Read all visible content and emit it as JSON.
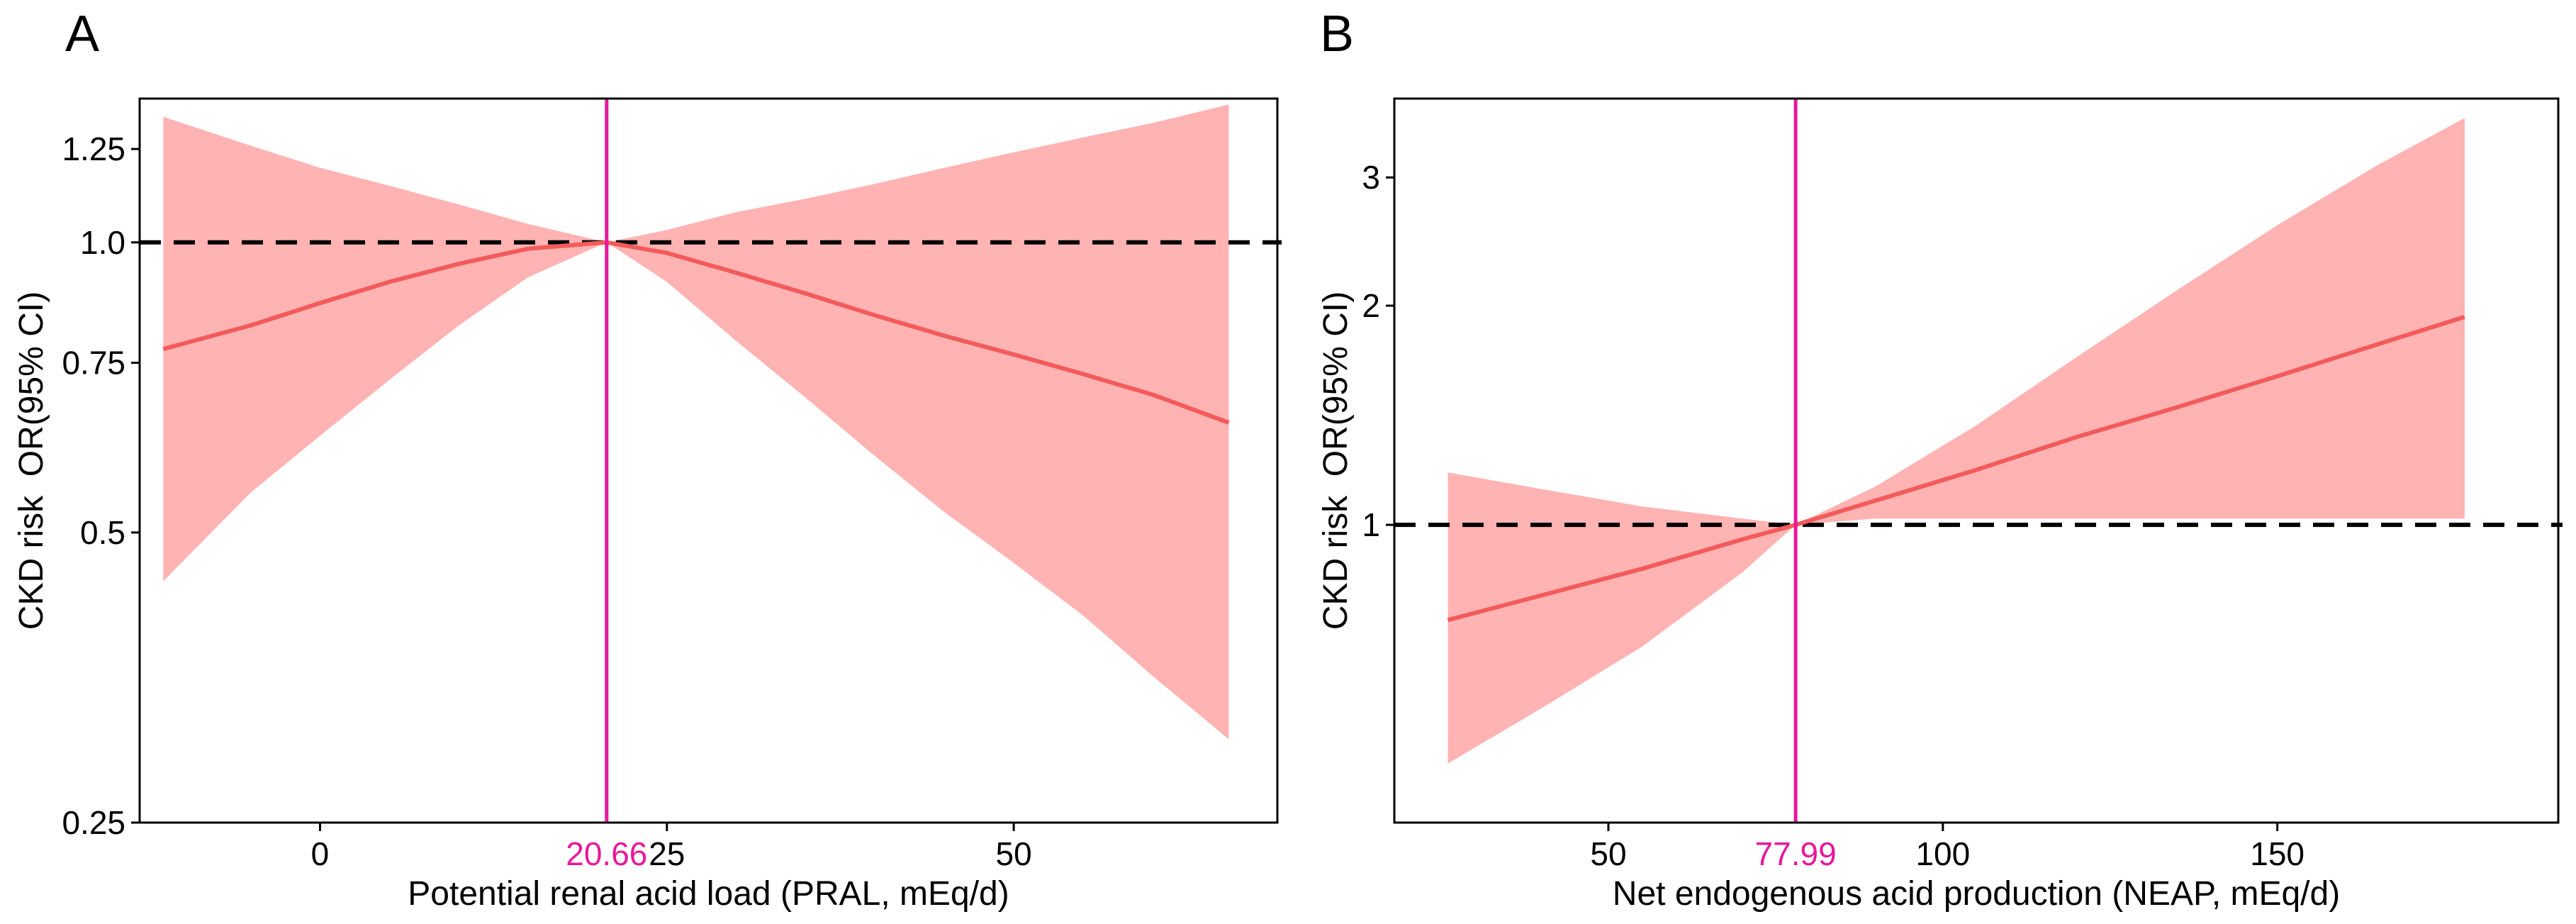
{
  "figure": {
    "colors": {
      "band": "#ffb3b3",
      "line": "#f35b5b",
      "cutoff": "#e8189a",
      "reference": "#000000",
      "axis": "#000000"
    }
  },
  "chart_data": [
    {
      "panel_label": "A",
      "type": "line",
      "xlabel": "Potential renal acid load (PRAL, mEq/d)",
      "ylabel": "CKD risk  OR(95% CI)",
      "xlim": [
        -13,
        69
      ],
      "ylim": [
        0.25,
        1.41
      ],
      "ylim_scale": "log",
      "x_ticks": [
        0,
        25,
        50
      ],
      "x_tick_labels": [
        "0",
        "25",
        "50"
      ],
      "y_ticks": [
        0.25,
        0.5,
        0.75,
        1.0,
        1.25
      ],
      "y_tick_labels": [
        "0.25",
        "0.5",
        "0.75",
        "1.0",
        "1.25"
      ],
      "reference_line": 1.0,
      "cutoff": 20.66,
      "cutoff_label": "20.66",
      "x": [
        -11.3,
        -5,
        0,
        5,
        10,
        15,
        20.66,
        25,
        30,
        35,
        40,
        45,
        50,
        55,
        60,
        65.5
      ],
      "or": [
        0.775,
        0.82,
        0.865,
        0.91,
        0.95,
        0.985,
        1.0,
        0.975,
        0.93,
        0.885,
        0.84,
        0.8,
        0.765,
        0.73,
        0.695,
        0.65
      ],
      "lower": [
        0.445,
        0.55,
        0.63,
        0.72,
        0.82,
        0.92,
        1.0,
        0.91,
        0.79,
        0.69,
        0.6,
        0.525,
        0.465,
        0.41,
        0.355,
        0.305
      ],
      "upper": [
        1.35,
        1.26,
        1.195,
        1.145,
        1.095,
        1.045,
        1.0,
        1.03,
        1.075,
        1.11,
        1.15,
        1.195,
        1.24,
        1.285,
        1.33,
        1.39
      ]
    },
    {
      "panel_label": "B",
      "type": "line",
      "xlabel": "Net endogenous acid production (NEAP, mEq/d)",
      "ylabel": "CKD risk  OR(95% CI)",
      "xlim": [
        18,
        192
      ],
      "ylim": [
        0.39,
        3.85
      ],
      "ylim_scale": "log",
      "x_ticks": [
        50,
        100,
        150
      ],
      "x_tick_labels": [
        "50",
        "100",
        "150"
      ],
      "y_ticks": [
        1,
        2,
        3
      ],
      "y_tick_labels": [
        "1",
        "2",
        "3"
      ],
      "reference_line": 1.0,
      "cutoff": 77.99,
      "cutoff_label": "77.99",
      "x": [
        26,
        40,
        55,
        70,
        77.99,
        90,
        105,
        120,
        135,
        150,
        165,
        178
      ],
      "or": [
        0.74,
        0.8,
        0.87,
        0.955,
        1.0,
        1.08,
        1.19,
        1.32,
        1.45,
        1.6,
        1.77,
        1.93
      ],
      "lower": [
        0.47,
        0.56,
        0.68,
        0.86,
        1.0,
        1.02,
        1.02,
        1.02,
        1.02,
        1.02,
        1.02,
        1.02
      ],
      "upper": [
        1.18,
        1.12,
        1.06,
        1.02,
        1.0,
        1.13,
        1.37,
        1.7,
        2.1,
        2.58,
        3.12,
        3.62
      ]
    }
  ]
}
